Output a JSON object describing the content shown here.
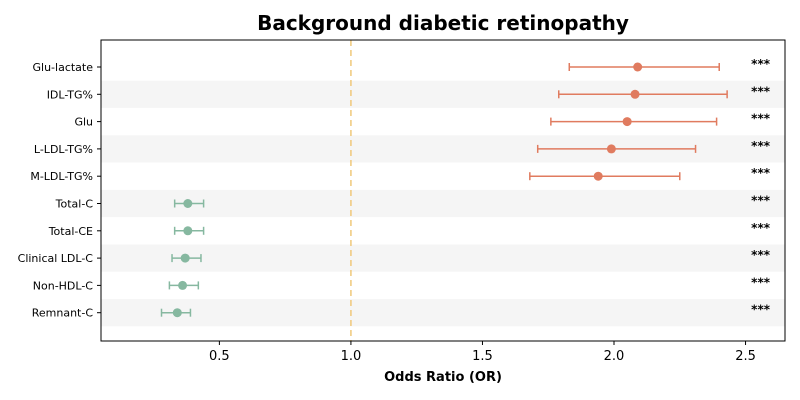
{
  "chart_data": {
    "type": "forest",
    "title": "Background diabetic retinopathy",
    "xlabel": "Odds Ratio (OR)",
    "ylabel": "",
    "xlim": [
      0.05,
      2.65
    ],
    "xticks": [
      0.5,
      1.0,
      1.5,
      2.0,
      2.5
    ],
    "xtick_labels": [
      "0.5",
      "1.0",
      "1.5",
      "2.0",
      "2.5"
    ],
    "reference_line": 1.0,
    "grid": false,
    "row_banding": true,
    "colors": {
      "positive": "#e07b5f",
      "negative": "#86b8a0",
      "reference": "#f0c87a",
      "band": "#f5f5f5"
    },
    "rows": [
      {
        "label": "Glu-lactate",
        "or": 2.09,
        "lo": 1.83,
        "hi": 2.4,
        "sig": "***"
      },
      {
        "label": "IDL-TG%",
        "or": 2.08,
        "lo": 1.79,
        "hi": 2.43,
        "sig": "***"
      },
      {
        "label": "Glu",
        "or": 2.05,
        "lo": 1.76,
        "hi": 2.39,
        "sig": "***"
      },
      {
        "label": "L-LDL-TG%",
        "or": 1.99,
        "lo": 1.71,
        "hi": 2.31,
        "sig": "***"
      },
      {
        "label": "M-LDL-TG%",
        "or": 1.94,
        "lo": 1.68,
        "hi": 2.25,
        "sig": "***"
      },
      {
        "label": "Total-C",
        "or": 0.38,
        "lo": 0.33,
        "hi": 0.44,
        "sig": "***"
      },
      {
        "label": "Total-CE",
        "or": 0.38,
        "lo": 0.33,
        "hi": 0.44,
        "sig": "***"
      },
      {
        "label": "Clinical LDL-C",
        "or": 0.37,
        "lo": 0.32,
        "hi": 0.43,
        "sig": "***"
      },
      {
        "label": "Non-HDL-C",
        "or": 0.36,
        "lo": 0.31,
        "hi": 0.42,
        "sig": "***"
      },
      {
        "label": "Remnant-C",
        "or": 0.34,
        "lo": 0.28,
        "hi": 0.39,
        "sig": "***"
      }
    ]
  }
}
